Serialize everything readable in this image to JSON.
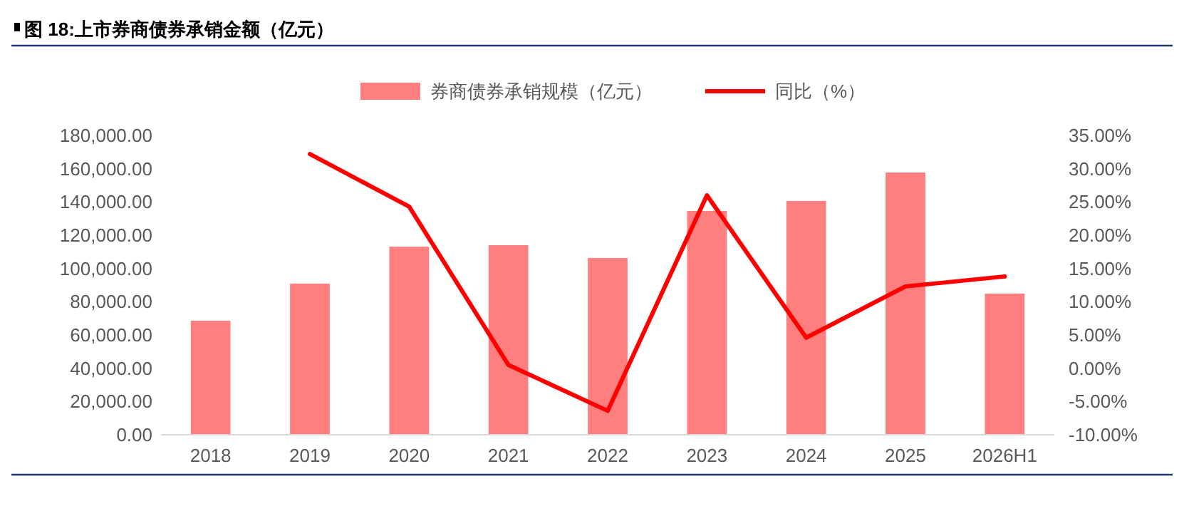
{
  "chart_data": {
    "type": "bar",
    "title": "图 18:上市券商债券承销金额（亿元）",
    "categories": [
      "2018",
      "2019",
      "2020",
      "2021",
      "2022",
      "2023",
      "2024",
      "2025",
      "2026H1"
    ],
    "series": [
      {
        "name": "券商债券承销规模（亿元）",
        "color": "#ff7f7f",
        "values": [
          68600,
          90900,
          113100,
          114000,
          106300,
          134600,
          140600,
          157700,
          84900
        ]
      },
      {
        "name": "同比（%）",
        "type": "line",
        "axis": "y2",
        "color": "#ff0000",
        "values": [
          null,
          32.2,
          24.3,
          0.5,
          -6.4,
          26.0,
          4.6,
          12.3,
          13.8
        ]
      }
    ],
    "ylim": [
      0,
      180000
    ],
    "yticks": [
      {
        "value": 0,
        "label": "0.00"
      },
      {
        "value": 20000,
        "label": "20,000.00"
      },
      {
        "value": 40000,
        "label": "40,000.00"
      },
      {
        "value": 60000,
        "label": "60,000.00"
      },
      {
        "value": 80000,
        "label": "80,000.00"
      },
      {
        "value": 100000,
        "label": "100,000.00"
      },
      {
        "value": 120000,
        "label": "120,000.00"
      },
      {
        "value": 140000,
        "label": "140,000.00"
      },
      {
        "value": 160000,
        "label": "160,000.00"
      },
      {
        "value": 180000,
        "label": "180,000.00"
      }
    ],
    "y2lim": [
      -10,
      35
    ],
    "y2ticks": [
      {
        "value": -10,
        "label": "-10.00%"
      },
      {
        "value": -5,
        "label": "-5.00%"
      },
      {
        "value": 0,
        "label": "0.00%"
      },
      {
        "value": 5,
        "label": "5.00%"
      },
      {
        "value": 10,
        "label": "10.00%"
      },
      {
        "value": 15,
        "label": "15.00%"
      },
      {
        "value": 20,
        "label": "20.00%"
      },
      {
        "value": 25,
        "label": "25.00%"
      },
      {
        "value": 30,
        "label": "30.00%"
      },
      {
        "value": 35,
        "label": "35.00%"
      }
    ],
    "legend": "top",
    "grid": false
  }
}
